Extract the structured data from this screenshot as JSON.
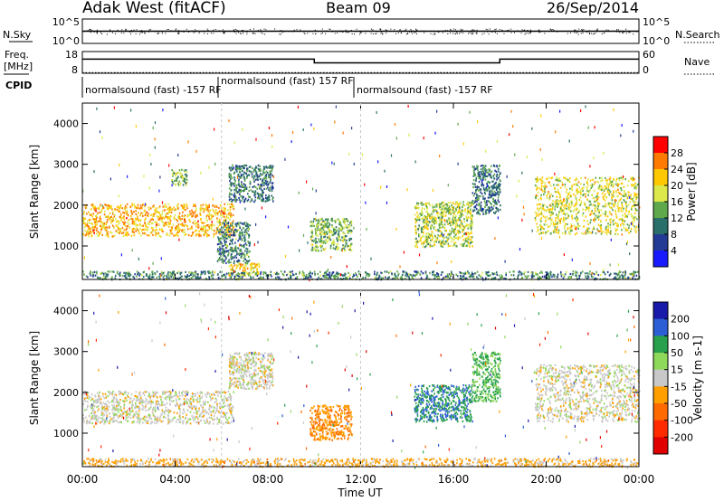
{
  "header": {
    "station": "Adak West (fitACF)",
    "beam": "Beam 09",
    "date": "26/Sep/2014"
  },
  "panels": {
    "nsky_label": "N.Sky",
    "nsearch_label": "N.Search",
    "noise_ticks_left": [
      "10^5",
      "10^0"
    ],
    "noise_ticks_right": [
      "10^5",
      "10^0"
    ],
    "freq_label_1": "Freq.",
    "freq_label_2": "[MHz]",
    "freq_ticks": [
      "18",
      "8"
    ],
    "nave_label": "Nave",
    "nave_ticks": [
      "60",
      "0"
    ],
    "cpid_label": "CPID",
    "cpid_segments": [
      {
        "label": "normalsound (fast) -157 RF",
        "start": 0,
        "end": 6
      },
      {
        "label": "normalsound (fast) 157 RF",
        "start": 6,
        "end": 12
      },
      {
        "label": "normalsound (fast) -157 RF",
        "start": 12,
        "end": 24
      }
    ]
  },
  "time_axis": {
    "label": "Time UT",
    "ticks": [
      "00:00",
      "04:00",
      "08:00",
      "12:00",
      "16:00",
      "20:00",
      "00:00"
    ]
  },
  "power_colorbar": {
    "label": "Power [dB]",
    "ticks": [
      "28",
      "24",
      "20",
      "16",
      "12",
      "8",
      "4"
    ],
    "colors": [
      "#ff0000",
      "#ff7a00",
      "#ffc800",
      "#dde84a",
      "#5fa84c",
      "#2a6f6a",
      "#243b96",
      "#1a1aff"
    ]
  },
  "velocity_colorbar": {
    "label": "Velocity [m s-1]",
    "ticks": [
      "200",
      "100",
      "50",
      "15",
      "-15",
      "-50",
      "-100",
      "-200"
    ],
    "colors": [
      "#1a1aaa",
      "#2c5fd6",
      "#28a04c",
      "#8ed85a",
      "#c8c8c8",
      "#ffa000",
      "#ff6a00",
      "#ff2a00",
      "#e00000"
    ]
  },
  "chart_data": [
    {
      "type": "line",
      "name": "noise",
      "x_range_hours": [
        0,
        24
      ],
      "yscale": "log",
      "ylim": [
        1,
        100000
      ],
      "series": [
        {
          "name": "N.Sky",
          "x": [
            0,
            24
          ],
          "y": [
            316,
            316
          ]
        },
        {
          "name": "N.Search",
          "x": [
            0,
            24
          ],
          "y": [
            200,
            200
          ]
        }
      ]
    },
    {
      "type": "line",
      "name": "frequency_nave",
      "x_range_hours": [
        0,
        24
      ],
      "ylim_freq": [
        8,
        18
      ],
      "ylim_nave": [
        0,
        60
      ],
      "series": [
        {
          "name": "Freq.",
          "x": [
            0,
            10,
            10,
            18,
            18,
            24
          ],
          "y": [
            14.5,
            14.5,
            12.8,
            12.8,
            14.5,
            14.5
          ]
        },
        {
          "name": "Nave",
          "x": [
            0,
            24
          ],
          "y": [
            2,
            2
          ]
        }
      ]
    },
    {
      "type": "heatmap",
      "name": "power",
      "xlabel": "",
      "ylabel": "Slant Range [km]",
      "x_range_hours": [
        0,
        24
      ],
      "ylim": [
        180,
        4500
      ],
      "yticks": [
        1000,
        2000,
        3000,
        4000
      ],
      "colorbar_range_db": [
        0,
        30
      ],
      "regions": [
        {
          "t0": 0.0,
          "t1": 6.5,
          "r0": 1250,
          "r1": 2050,
          "level": 22
        },
        {
          "t0": 3.8,
          "t1": 4.5,
          "r0": 2500,
          "r1": 2900,
          "level": 14
        },
        {
          "t0": 5.8,
          "t1": 7.2,
          "r0": 600,
          "r1": 1600,
          "level": 10
        },
        {
          "t0": 6.3,
          "t1": 7.6,
          "r0": 300,
          "r1": 600,
          "level": 20
        },
        {
          "t0": 6.3,
          "t1": 8.2,
          "r0": 2100,
          "r1": 3000,
          "level": 9
        },
        {
          "t0": 9.8,
          "t1": 11.6,
          "r0": 900,
          "r1": 1700,
          "level": 14
        },
        {
          "t0": 14.3,
          "t1": 16.8,
          "r0": 1000,
          "r1": 2100,
          "level": 16
        },
        {
          "t0": 16.8,
          "t1": 18.0,
          "r0": 1800,
          "r1": 3000,
          "level": 8
        },
        {
          "t0": 19.5,
          "t1": 24.0,
          "r0": 1300,
          "r1": 2700,
          "level": 18
        },
        {
          "t0": 0.0,
          "t1": 24.0,
          "r0": 200,
          "r1": 400,
          "level": 10
        }
      ]
    },
    {
      "type": "heatmap",
      "name": "velocity",
      "ylabel": "Slant Range [km]",
      "x_range_hours": [
        0,
        24
      ],
      "ylim": [
        180,
        4500
      ],
      "yticks": [
        1000,
        2000,
        3000,
        4000
      ],
      "colorbar_range_ms": [
        -200,
        200
      ],
      "regions": [
        {
          "t0": 0.0,
          "t1": 6.5,
          "r0": 1250,
          "r1": 2050,
          "velocity": 0
        },
        {
          "t0": 6.3,
          "t1": 8.2,
          "r0": 2100,
          "r1": 3000,
          "velocity": 0
        },
        {
          "t0": 9.8,
          "t1": 11.6,
          "r0": 850,
          "r1": 1700,
          "velocity": -70
        },
        {
          "t0": 14.3,
          "t1": 16.8,
          "r0": 1300,
          "r1": 2200,
          "velocity": 120
        },
        {
          "t0": 16.8,
          "t1": 18.0,
          "r0": 1800,
          "r1": 3000,
          "velocity": 80
        },
        {
          "t0": 19.5,
          "t1": 24.0,
          "r0": 1300,
          "r1": 2700,
          "velocity": 0
        },
        {
          "t0": 0.0,
          "t1": 24.0,
          "r0": 200,
          "r1": 400,
          "velocity": -40
        }
      ]
    }
  ]
}
